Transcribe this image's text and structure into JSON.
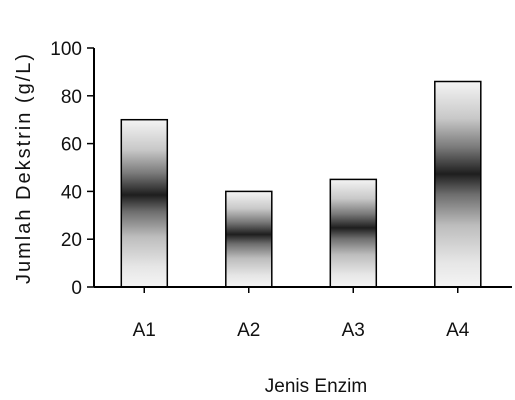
{
  "chart_data": {
    "type": "bar",
    "categories": [
      "A1",
      "A2",
      "A3",
      "A4"
    ],
    "values": [
      70,
      40,
      45,
      86
    ],
    "title": "",
    "xlabel": "Jenis Enzim",
    "ylabel": "Jumlah Dekstrin (g/L)",
    "ylim": [
      0,
      100
    ],
    "yticks": [
      0,
      20,
      40,
      60,
      80,
      100
    ],
    "grid": false,
    "legend": "none",
    "bar_fill": "gradient-grey",
    "colors": {
      "axis": "#000000",
      "bar_light": "#f4f4f4",
      "bar_dark": "#1e1e1e"
    }
  }
}
